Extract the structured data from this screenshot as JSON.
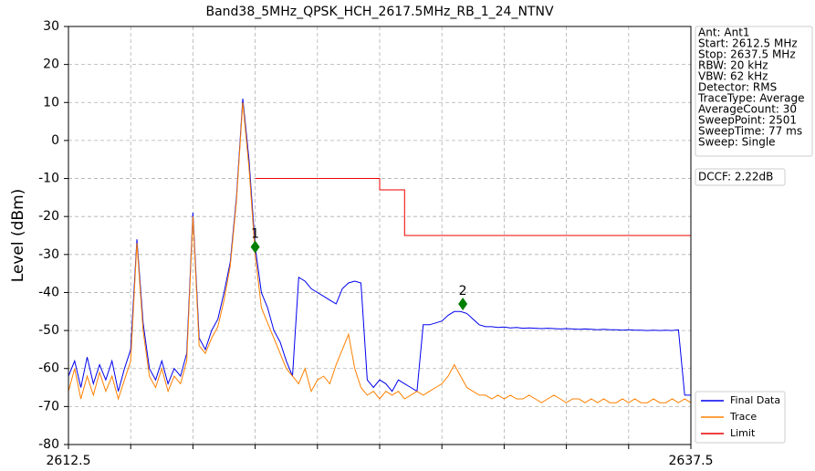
{
  "chart_data": {
    "type": "line",
    "title": "Band38_5MHz_QPSK_HCH_2617.5MHz_RB_1_24_NTNV",
    "y_label": "Level (dBm)",
    "xlim": [
      2612.5,
      2637.5
    ],
    "xticks": [
      2612.5,
      {
        "value": 2615,
        "label": null
      },
      {
        "value": 2617.5,
        "label": null
      },
      {
        "value": 2620,
        "label": null
      },
      {
        "value": 2622.5,
        "label": null
      },
      {
        "value": 2625,
        "label": null
      },
      {
        "value": 2627.5,
        "label": null
      },
      {
        "value": 2630,
        "label": null
      },
      {
        "value": 2632.5,
        "label": null
      },
      {
        "value": 2635,
        "label": null
      },
      2637.5
    ],
    "ylim": [
      -80,
      30
    ],
    "yticks": [
      -80,
      -70,
      -60,
      -50,
      -40,
      -30,
      -20,
      -10,
      0,
      10,
      20,
      30
    ],
    "grid": true,
    "legend": "lower right outside",
    "x": [
      2612.5,
      2612.75,
      2613,
      2613.25,
      2613.5,
      2613.75,
      2614,
      2614.25,
      2614.5,
      2614.75,
      2615,
      2615.25,
      2615.5,
      2615.75,
      2616,
      2616.25,
      2616.5,
      2616.75,
      2617,
      2617.25,
      2617.5,
      2617.75,
      2618,
      2618.25,
      2618.5,
      2618.75,
      2619,
      2619.25,
      2619.5,
      2619.75,
      2620,
      2620.25,
      2620.5,
      2620.75,
      2621,
      2621.25,
      2621.5,
      2621.75,
      2622,
      2622.25,
      2622.5,
      2622.75,
      2623,
      2623.25,
      2623.5,
      2623.75,
      2624,
      2624.25,
      2624.5,
      2624.75,
      2625,
      2625.25,
      2625.5,
      2625.75,
      2626,
      2626.25,
      2626.5,
      2626.75,
      2627,
      2627.25,
      2627.5,
      2627.75,
      2628,
      2628.25,
      2628.5,
      2628.75,
      2629,
      2629.25,
      2629.5,
      2629.75,
      2630,
      2630.25,
      2630.5,
      2630.75,
      2631,
      2631.25,
      2631.5,
      2631.75,
      2632,
      2632.25,
      2632.5,
      2632.75,
      2633,
      2633.25,
      2633.5,
      2633.75,
      2634,
      2634.25,
      2634.5,
      2634.75,
      2635,
      2635.25,
      2635.5,
      2635.75,
      2636,
      2636.25,
      2636.5,
      2636.75,
      2637,
      2637.25,
      2637.5
    ],
    "series": [
      {
        "name": "Final Data",
        "color": "#0000ee",
        "values": [
          -62,
          -58,
          -65,
          -57,
          -64,
          -59,
          -63,
          -58,
          -66,
          -60,
          -55,
          -26,
          -48,
          -60,
          -63,
          -58,
          -64,
          -60,
          -62,
          -56,
          -19,
          -52,
          -55,
          -50,
          -47,
          -40,
          -32,
          -15,
          11,
          -5,
          -28,
          -40,
          -44,
          -50,
          -53,
          -58,
          -62,
          -36,
          -37,
          -39,
          -40,
          -41,
          -42,
          -43,
          -39,
          -37.5,
          -37,
          -37.5,
          -63,
          -65,
          -63,
          -64,
          -66,
          -63,
          -64,
          -65,
          -66,
          -48.5,
          -48.5,
          -48,
          -47.5,
          -46,
          -45,
          -45,
          -45.5,
          -47,
          -48.5,
          -49,
          -49,
          -49.2,
          -49.1,
          -49.3,
          -49.2,
          -49.4,
          -49.3,
          -49.4,
          -49.5,
          -49.4,
          -49.5,
          -49.6,
          -49.5,
          -49.6,
          -49.7,
          -49.6,
          -49.7,
          -49.8,
          -49.7,
          -49.8,
          -49.8,
          -49.9,
          -49.8,
          -49.9,
          -49.9,
          -50,
          -49.9,
          -50,
          -49.9,
          -50,
          -49.8,
          -67,
          -67
        ]
      },
      {
        "name": "Trace",
        "color": "#ff8000",
        "values": [
          -66,
          -60,
          -68,
          -62,
          -67,
          -61,
          -66,
          -62,
          -68,
          -63,
          -58,
          -27,
          -50,
          -62,
          -65,
          -60,
          -66,
          -62,
          -64,
          -58,
          -20,
          -54,
          -56,
          -52,
          -49,
          -42,
          -33,
          -16,
          10,
          -7,
          -30,
          -44,
          -48,
          -52,
          -56,
          -60,
          -62,
          -64,
          -60,
          -66,
          -63,
          -62,
          -64,
          -59,
          -55,
          -51,
          -60,
          -65,
          -67,
          -66,
          -68,
          -66,
          -67,
          -66,
          -68,
          -67,
          -66,
          -67,
          -66,
          -65,
          -64,
          -62,
          -59,
          -62,
          -65,
          -66,
          -67,
          -67,
          -68,
          -67,
          -68,
          -67,
          -68,
          -68,
          -67,
          -68,
          -69,
          -68,
          -67,
          -68,
          -69,
          -68,
          -68,
          -69,
          -68,
          -69,
          -68,
          -69,
          -69,
          -68,
          -69,
          -68,
          -69,
          -69,
          -68,
          -69,
          -69,
          -68,
          -69,
          -68,
          -69
        ]
      },
      {
        "name": "Limit",
        "color": "#ee0000",
        "x": [
          2620,
          2625,
          2625,
          2626,
          2626,
          2637.5
        ],
        "values": [
          -10,
          -10,
          -13,
          -13,
          -25,
          -25
        ]
      }
    ],
    "markers": [
      {
        "label": "1",
        "x": 2620,
        "y": -28
      },
      {
        "label": "2",
        "x": 2628.34,
        "y": -43
      }
    ],
    "marker_color": "#008000",
    "info": [
      "Ant: Ant1",
      "Start: 2612.5 MHz",
      "Stop: 2637.5 MHz",
      "RBW: 20 kHz",
      "VBW: 62 kHz",
      "Detector: RMS",
      "TraceType: Average",
      "AverageCount: 30",
      "SweepPoint: 2501",
      "SweepTime: 77 ms",
      "Sweep: Single"
    ],
    "dccf": "DCCF: 2.22dB"
  }
}
